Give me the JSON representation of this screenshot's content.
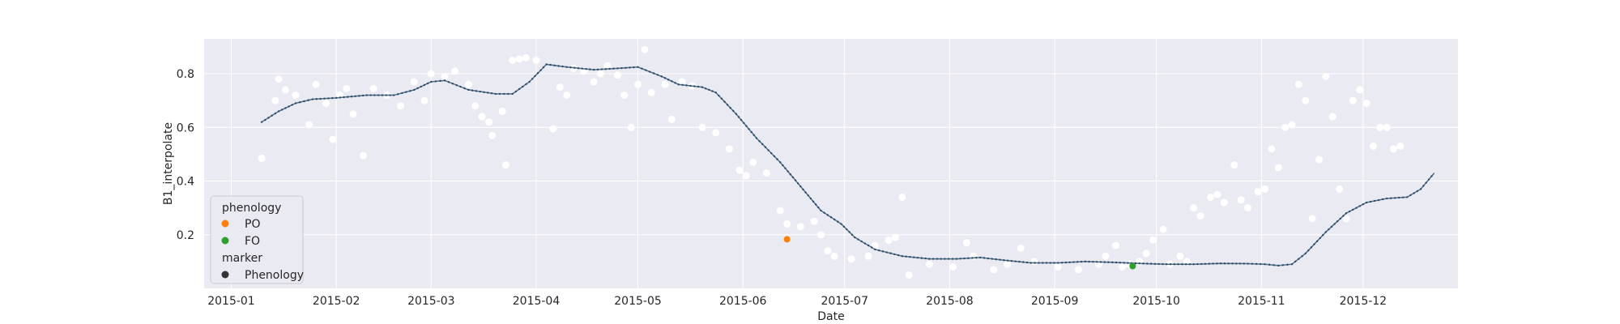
{
  "chart_data": {
    "type": "scatter",
    "title": "",
    "xlabel": "Date",
    "ylabel": "B1_interpolate",
    "x_ticks": [
      "2015-01",
      "2015-02",
      "2015-03",
      "2015-04",
      "2015-05",
      "2015-06",
      "2015-07",
      "2015-08",
      "2015-09",
      "2015-10",
      "2015-11",
      "2015-12"
    ],
    "y_ticks": [
      "0.2",
      "0.4",
      "0.6",
      "0.8"
    ],
    "xlim": [
      "2014-12-24",
      "2015-12-29"
    ],
    "ylim": [
      0.0,
      0.93
    ],
    "grid": true,
    "legend_placement": "lower-left",
    "colors": {
      "background": "#eaeaf2",
      "grid": "#ffffff",
      "raw_points": "#ffffff",
      "line": "#4c6f8c",
      "line_dots": "#2f4b61",
      "PO": "#ff7f0e",
      "FO": "#2ca02c",
      "Phenology": "#333333"
    },
    "legend": {
      "hue_title": "phenology",
      "items": [
        {
          "label": "PO",
          "color": "#ff7f0e"
        },
        {
          "label": "FO",
          "color": "#2ca02c"
        }
      ],
      "style_title": "marker",
      "style_items": [
        {
          "label": "Phenology",
          "color": "#333333"
        }
      ]
    },
    "interpolated_series": [
      [
        "2015-01-10",
        0.62
      ],
      [
        "2015-01-15",
        0.66
      ],
      [
        "2015-01-20",
        0.69
      ],
      [
        "2015-01-25",
        0.705
      ],
      [
        "2015-02-01",
        0.71
      ],
      [
        "2015-02-10",
        0.72
      ],
      [
        "2015-02-18",
        0.72
      ],
      [
        "2015-02-24",
        0.74
      ],
      [
        "2015-03-01",
        0.77
      ],
      [
        "2015-03-05",
        0.775
      ],
      [
        "2015-03-12",
        0.74
      ],
      [
        "2015-03-20",
        0.725
      ],
      [
        "2015-03-25",
        0.725
      ],
      [
        "2015-03-30",
        0.77
      ],
      [
        "2015-04-04",
        0.835
      ],
      [
        "2015-04-10",
        0.825
      ],
      [
        "2015-04-18",
        0.815
      ],
      [
        "2015-04-25",
        0.82
      ],
      [
        "2015-05-01",
        0.825
      ],
      [
        "2015-05-08",
        0.79
      ],
      [
        "2015-05-13",
        0.76
      ],
      [
        "2015-05-20",
        0.75
      ],
      [
        "2015-05-24",
        0.73
      ],
      [
        "2015-05-30",
        0.65
      ],
      [
        "2015-06-05",
        0.56
      ],
      [
        "2015-06-12",
        0.47
      ],
      [
        "2015-06-18",
        0.38
      ],
      [
        "2015-06-24",
        0.29
      ],
      [
        "2015-06-30",
        0.24
      ],
      [
        "2015-07-04",
        0.19
      ],
      [
        "2015-07-10",
        0.145
      ],
      [
        "2015-07-18",
        0.12
      ],
      [
        "2015-07-26",
        0.11
      ],
      [
        "2015-08-03",
        0.11
      ],
      [
        "2015-08-10",
        0.115
      ],
      [
        "2015-08-17",
        0.105
      ],
      [
        "2015-08-25",
        0.095
      ],
      [
        "2015-09-02",
        0.095
      ],
      [
        "2015-09-10",
        0.1
      ],
      [
        "2015-09-18",
        0.097
      ],
      [
        "2015-09-26",
        0.093
      ],
      [
        "2015-10-04",
        0.09
      ],
      [
        "2015-10-12",
        0.09
      ],
      [
        "2015-10-20",
        0.093
      ],
      [
        "2015-10-28",
        0.092
      ],
      [
        "2015-11-02",
        0.09
      ],
      [
        "2015-11-06",
        0.085
      ],
      [
        "2015-11-10",
        0.09
      ],
      [
        "2015-11-14",
        0.13
      ],
      [
        "2015-11-20",
        0.21
      ],
      [
        "2015-11-26",
        0.28
      ],
      [
        "2015-12-02",
        0.32
      ],
      [
        "2015-12-08",
        0.335
      ],
      [
        "2015-12-14",
        0.34
      ],
      [
        "2015-12-18",
        0.37
      ],
      [
        "2015-12-22",
        0.43
      ]
    ],
    "raw_points": [
      [
        "2015-01-10",
        0.485
      ],
      [
        "2015-01-14",
        0.7
      ],
      [
        "2015-01-15",
        0.78
      ],
      [
        "2015-01-17",
        0.74
      ],
      [
        "2015-01-20",
        0.72
      ],
      [
        "2015-01-24",
        0.61
      ],
      [
        "2015-01-26",
        0.76
      ],
      [
        "2015-01-29",
        0.69
      ],
      [
        "2015-01-31",
        0.555
      ],
      [
        "2015-02-02",
        0.72
      ],
      [
        "2015-02-04",
        0.745
      ],
      [
        "2015-02-06",
        0.65
      ],
      [
        "2015-02-09",
        0.495
      ],
      [
        "2015-02-12",
        0.745
      ],
      [
        "2015-02-16",
        0.72
      ],
      [
        "2015-02-20",
        0.68
      ],
      [
        "2015-02-24",
        0.77
      ],
      [
        "2015-02-27",
        0.7
      ],
      [
        "2015-03-01",
        0.8
      ],
      [
        "2015-03-05",
        0.79
      ],
      [
        "2015-03-08",
        0.81
      ],
      [
        "2015-03-12",
        0.76
      ],
      [
        "2015-03-14",
        0.68
      ],
      [
        "2015-03-16",
        0.64
      ],
      [
        "2015-03-18",
        0.62
      ],
      [
        "2015-03-19",
        0.57
      ],
      [
        "2015-03-22",
        0.66
      ],
      [
        "2015-03-23",
        0.46
      ],
      [
        "2015-03-25",
        0.85
      ],
      [
        "2015-03-27",
        0.855
      ],
      [
        "2015-03-29",
        0.86
      ],
      [
        "2015-04-01",
        0.85
      ],
      [
        "2015-04-06",
        0.595
      ],
      [
        "2015-04-08",
        0.75
      ],
      [
        "2015-04-10",
        0.72
      ],
      [
        "2015-04-12",
        0.82
      ],
      [
        "2015-04-15",
        0.81
      ],
      [
        "2015-04-18",
        0.77
      ],
      [
        "2015-04-20",
        0.8
      ],
      [
        "2015-04-22",
        0.83
      ],
      [
        "2015-04-25",
        0.795
      ],
      [
        "2015-04-27",
        0.72
      ],
      [
        "2015-04-29",
        0.6
      ],
      [
        "2015-05-01",
        0.76
      ],
      [
        "2015-05-03",
        0.89
      ],
      [
        "2015-05-05",
        0.73
      ],
      [
        "2015-05-09",
        0.76
      ],
      [
        "2015-05-11",
        0.63
      ],
      [
        "2015-05-14",
        0.77
      ],
      [
        "2015-05-17",
        0.755
      ],
      [
        "2015-05-20",
        0.6
      ],
      [
        "2015-05-24",
        0.58
      ],
      [
        "2015-05-28",
        0.52
      ],
      [
        "2015-05-31",
        0.44
      ],
      [
        "2015-06-02",
        0.42
      ],
      [
        "2015-06-04",
        0.47
      ],
      [
        "2015-06-08",
        0.43
      ],
      [
        "2015-06-12",
        0.29
      ],
      [
        "2015-06-14",
        0.24
      ],
      [
        "2015-06-18",
        0.23
      ],
      [
        "2015-06-22",
        0.25
      ],
      [
        "2015-06-24",
        0.2
      ],
      [
        "2015-06-26",
        0.14
      ],
      [
        "2015-06-28",
        0.12
      ],
      [
        "2015-07-03",
        0.11
      ],
      [
        "2015-07-08",
        0.12
      ],
      [
        "2015-07-10",
        0.16
      ],
      [
        "2015-07-14",
        0.18
      ],
      [
        "2015-07-16",
        0.19
      ],
      [
        "2015-07-18",
        0.34
      ],
      [
        "2015-07-20",
        0.05
      ],
      [
        "2015-07-26",
        0.09
      ],
      [
        "2015-08-02",
        0.08
      ],
      [
        "2015-08-06",
        0.17
      ],
      [
        "2015-08-08",
        0.12
      ],
      [
        "2015-08-14",
        0.07
      ],
      [
        "2015-08-18",
        0.09
      ],
      [
        "2015-08-22",
        0.15
      ],
      [
        "2015-08-26",
        0.1
      ],
      [
        "2015-09-02",
        0.08
      ],
      [
        "2015-09-08",
        0.07
      ],
      [
        "2015-09-14",
        0.09
      ],
      [
        "2015-09-16",
        0.12
      ],
      [
        "2015-09-19",
        0.16
      ],
      [
        "2015-09-21",
        0.08
      ],
      [
        "2015-09-23",
        0.09
      ],
      [
        "2015-09-26",
        0.1
      ],
      [
        "2015-09-28",
        0.13
      ],
      [
        "2015-09-30",
        0.18
      ],
      [
        "2015-10-03",
        0.22
      ],
      [
        "2015-10-05",
        0.09
      ],
      [
        "2015-10-08",
        0.12
      ],
      [
        "2015-10-10",
        0.1
      ],
      [
        "2015-10-12",
        0.3
      ],
      [
        "2015-10-14",
        0.27
      ],
      [
        "2015-10-17",
        0.34
      ],
      [
        "2015-10-19",
        0.35
      ],
      [
        "2015-10-21",
        0.32
      ],
      [
        "2015-10-24",
        0.46
      ],
      [
        "2015-10-26",
        0.33
      ],
      [
        "2015-10-28",
        0.3
      ],
      [
        "2015-10-31",
        0.36
      ],
      [
        "2015-11-02",
        0.37
      ],
      [
        "2015-11-04",
        0.52
      ],
      [
        "2015-11-06",
        0.45
      ],
      [
        "2015-11-08",
        0.6
      ],
      [
        "2015-11-10",
        0.61
      ],
      [
        "2015-11-12",
        0.76
      ],
      [
        "2015-11-14",
        0.7
      ],
      [
        "2015-11-16",
        0.26
      ],
      [
        "2015-11-18",
        0.48
      ],
      [
        "2015-11-20",
        0.79
      ],
      [
        "2015-11-22",
        0.64
      ],
      [
        "2015-11-24",
        0.37
      ],
      [
        "2015-11-26",
        0.26
      ],
      [
        "2015-11-28",
        0.7
      ],
      [
        "2015-11-30",
        0.74
      ],
      [
        "2015-12-02",
        0.69
      ],
      [
        "2015-12-04",
        0.53
      ],
      [
        "2015-12-06",
        0.6
      ],
      [
        "2015-12-08",
        0.6
      ],
      [
        "2015-12-10",
        0.52
      ],
      [
        "2015-12-12",
        0.53
      ]
    ],
    "phenology_points": [
      {
        "name": "PO",
        "date": "2015-06-14",
        "value": 0.183,
        "color": "#ff7f0e"
      },
      {
        "name": "FO",
        "date": "2015-09-24",
        "value": 0.083,
        "color": "#2ca02c"
      }
    ]
  }
}
